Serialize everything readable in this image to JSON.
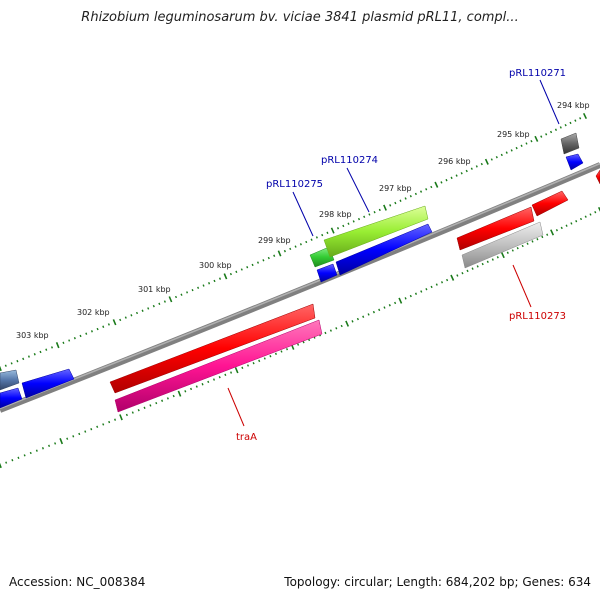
{
  "title": "Rhizobium leguminosarum bv. viciae 3841 plasmid pRL11, compl...",
  "footer": {
    "accession": "Accession: NC_008384",
    "summary": "Topology: circular; Length: 684,202 bp; Genes: 634"
  },
  "ticks": [
    {
      "label": "294 kbp"
    },
    {
      "label": "295 kbp"
    },
    {
      "label": "296 kbp"
    },
    {
      "label": "297 kbp"
    },
    {
      "label": "298 kbp"
    },
    {
      "label": "299 kbp"
    },
    {
      "label": "300 kbp"
    },
    {
      "label": "301 kbp"
    },
    {
      "label": "302 kbp"
    },
    {
      "label": "303 kbp"
    }
  ],
  "genes": [
    {
      "name": "pRL110271",
      "color": "#0000aa"
    },
    {
      "name": "pRL110274",
      "color": "#0000aa"
    },
    {
      "name": "pRL110275",
      "color": "#0000aa"
    },
    {
      "name": "pRL110273",
      "color": "#cc0000"
    },
    {
      "name": "traA",
      "color": "#cc0000"
    }
  ],
  "colors": {
    "backbone": "#808080",
    "tick": "#1a7a1a",
    "red": "#ff0000",
    "blue": "#0000ff",
    "pink": "#ff1493",
    "gray": "#c0c0c0",
    "green": "#33cc33",
    "lightgreen": "#99ee33",
    "darkgray": "#666666",
    "steel": "#5577aa"
  }
}
